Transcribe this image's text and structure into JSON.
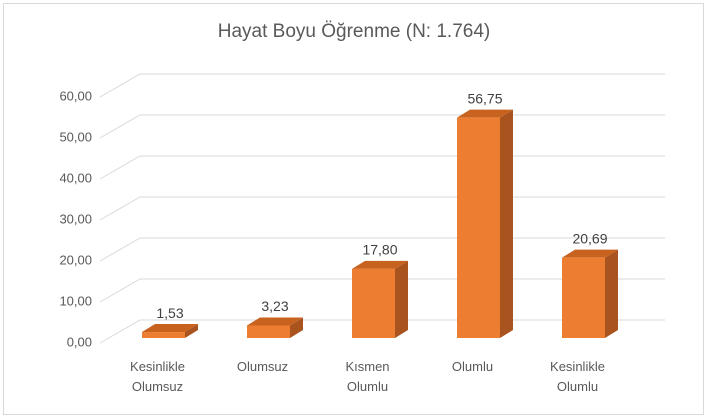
{
  "chart_data": {
    "type": "bar3d",
    "title": "Hayat Boyu Öğrenme (N: 1.764)",
    "categories": [
      "Kesinlikle Olumsuz",
      "Olumsuz",
      "Kısmen Olumlu",
      "Olumlu",
      "Kesinlikle Olumlu"
    ],
    "values": [
      1.53,
      3.23,
      17.8,
      56.75,
      20.69
    ],
    "value_labels": [
      "1,53",
      "3,23",
      "17,80",
      "56,75",
      "20,69"
    ],
    "color": "#ed7d31",
    "ylim": [
      0,
      60
    ],
    "yticks": [
      {
        "value": 0,
        "label": "0,00"
      },
      {
        "value": 10,
        "label": "10,00"
      },
      {
        "value": 20,
        "label": "20,00"
      },
      {
        "value": 30,
        "label": "30,00"
      },
      {
        "value": 40,
        "label": "40,00"
      },
      {
        "value": 50,
        "label": "50,00"
      },
      {
        "value": 60,
        "label": "60,00"
      }
    ],
    "grid": true
  }
}
